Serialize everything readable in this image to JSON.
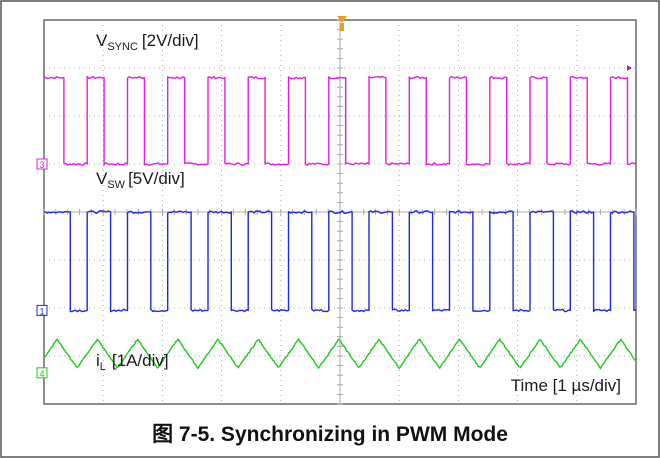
{
  "chart_data": {
    "type": "line",
    "title": "",
    "caption": "图 7-5. Synchronizing in PWM Mode",
    "time_label": "Time [1 µs/div]",
    "divisions": {
      "x": 10,
      "y": 8
    },
    "x_range_us": [
      0,
      10
    ],
    "grid": true,
    "channels": [
      {
        "id": "ch3",
        "marker": "3",
        "name": "V_SYNC",
        "label_main": "V",
        "label_sub": "SYNC",
        "label_scale": "[2V/div]",
        "color": "#e020e0",
        "waveform": "square",
        "period_div": 0.68,
        "duty": 0.42,
        "high_div": 6.8,
        "low_div": 5.0
      },
      {
        "id": "ch1",
        "marker": "1",
        "name": "V_SW",
        "label_main": "V",
        "label_sub": "SW",
        "label_scale": "[5V/div]",
        "color": "#1f2bd8",
        "waveform": "square",
        "period_div": 0.68,
        "duty": 0.58,
        "high_div": 4.0,
        "low_div": 1.95
      },
      {
        "id": "ch4",
        "marker": "4",
        "name": "i_L",
        "label_main": "i",
        "label_sub": "L",
        "label_scale": "[1A/div]",
        "color": "#22c81e",
        "waveform": "triangle",
        "period_div": 0.68,
        "high_div": 1.35,
        "low_div": 0.75
      }
    ]
  }
}
